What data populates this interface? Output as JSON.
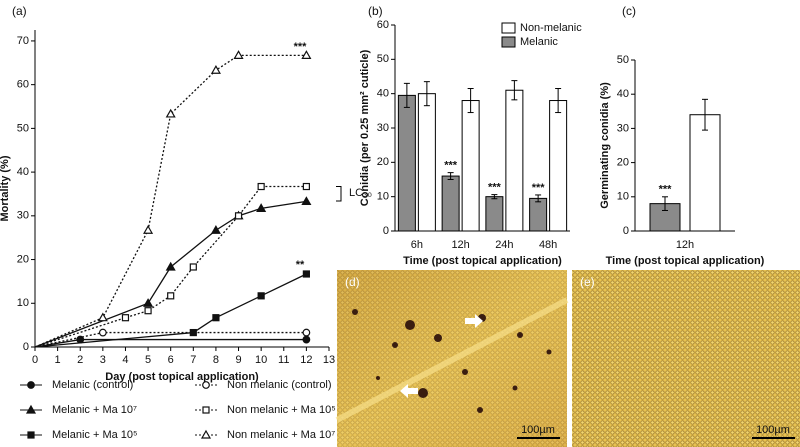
{
  "chart_data": [
    {
      "type": "line",
      "panel": "(a)",
      "x_label": "Day (post topical application)",
      "y_label": "Mortality (%)",
      "xlim": [
        0,
        13
      ],
      "xticks": [
        0,
        1,
        2,
        3,
        4,
        5,
        6,
        7,
        8,
        9,
        10,
        11,
        12,
        13
      ],
      "ylim": [
        0,
        72.5
      ],
      "yticks": [
        0,
        10,
        20,
        30,
        40,
        50,
        60,
        70
      ],
      "annotations": [
        "***",
        "**",
        "LC₃₀"
      ],
      "series": [
        {
          "name": "Melanic (control)",
          "color": "#111111",
          "marker": "circle",
          "filled": true,
          "dash": "solid",
          "x": [
            0,
            2,
            12
          ],
          "values": [
            0,
            1.7,
            1.7
          ]
        },
        {
          "name": "Non melanic (control)",
          "color": "#111111",
          "marker": "circle",
          "filled": false,
          "dash": "dotted",
          "x": [
            0,
            3,
            12
          ],
          "values": [
            0,
            3.3,
            3.3
          ]
        },
        {
          "name": "Melanic + Ma 10⁷",
          "color": "#111111",
          "marker": "triangle",
          "filled": true,
          "dash": "solid",
          "x": [
            0,
            5,
            6,
            8,
            9,
            10,
            12
          ],
          "values": [
            0,
            10,
            18.3,
            26.7,
            30,
            31.7,
            33.3
          ]
        },
        {
          "name": "Non melanic + Ma 10⁵",
          "color": "#111111",
          "marker": "square",
          "filled": false,
          "dash": "dotted",
          "x": [
            0,
            4,
            5,
            6,
            7,
            9,
            10,
            12
          ],
          "values": [
            0,
            6.7,
            8.3,
            11.7,
            18.3,
            30,
            36.7,
            36.7
          ]
        },
        {
          "name": "Melanic + Ma 10⁵",
          "color": "#111111",
          "marker": "square",
          "filled": true,
          "dash": "solid",
          "x": [
            0,
            7,
            8,
            10,
            12
          ],
          "values": [
            0,
            3.3,
            6.7,
            11.7,
            16.7
          ]
        },
        {
          "name": "Non melanic + Ma 10⁷",
          "color": "#111111",
          "marker": "triangle",
          "filled": false,
          "dash": "dotted",
          "x": [
            0,
            3,
            5,
            6,
            8,
            9,
            12
          ],
          "values": [
            0,
            6.7,
            26.7,
            53.3,
            63.3,
            66.7,
            66.7
          ]
        }
      ]
    },
    {
      "type": "bar",
      "panel": "(b)",
      "x_label": "Time (post topical application)",
      "y_label": "Conidia (per 0.25 mm² cuticle)",
      "categories": [
        "6h",
        "12h",
        "24h",
        "48h"
      ],
      "ylim": [
        0,
        60
      ],
      "yticks": [
        0,
        10,
        20,
        30,
        40,
        50,
        60
      ],
      "series": [
        {
          "name": "Melanic",
          "color": "#8a8a8a",
          "values": [
            39.5,
            16,
            10,
            9.5
          ],
          "errors": [
            3.5,
            1,
            0.6,
            1
          ],
          "significance": [
            null,
            "***",
            "***",
            "***"
          ]
        },
        {
          "name": "Non-melanic",
          "color": "#ffffff",
          "values": [
            40,
            38,
            41,
            38
          ],
          "errors": [
            3.5,
            3.5,
            2.8,
            3.5
          ]
        }
      ]
    },
    {
      "type": "bar",
      "panel": "(c)",
      "x_label": "Time (post topical application)",
      "y_label": "Germinating conidia (%)",
      "categories": [
        "12h"
      ],
      "ylim": [
        0,
        50
      ],
      "yticks": [
        0,
        10,
        20,
        30,
        40,
        50
      ],
      "series": [
        {
          "color": "#8a8a8a",
          "values": [
            8
          ],
          "errors": [
            2
          ],
          "significance": [
            "***"
          ]
        },
        {
          "color": "#ffffff",
          "values": [
            34
          ],
          "errors": [
            4.5
          ]
        }
      ]
    }
  ],
  "images": [
    {
      "label": "(d)",
      "scale": "100µm"
    },
    {
      "label": "(e)",
      "scale": "100µm"
    }
  ]
}
